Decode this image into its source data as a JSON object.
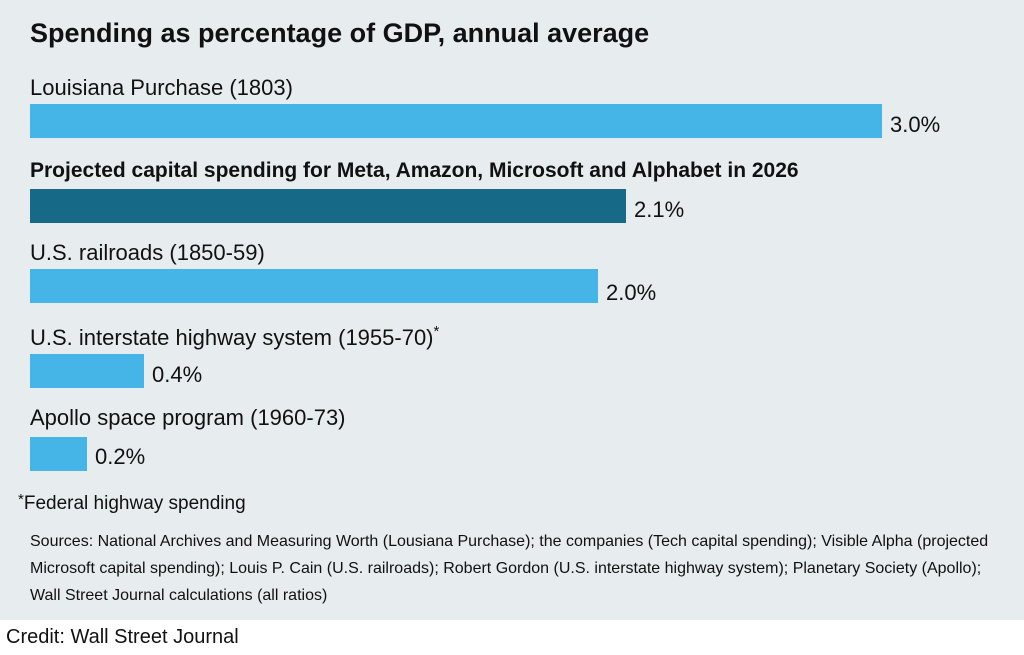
{
  "chart_data": {
    "type": "bar",
    "orientation": "horizontal",
    "title": "Spending as percentage of GDP, annual average",
    "xlabel": "",
    "ylabel": "",
    "unit": "%",
    "xlim": [
      0,
      3.0
    ],
    "grid": false,
    "categories": [
      "Louisiana Purchase (1803)",
      "Projected capital spending for Meta, Amazon, Microsoft and Alphabet in 2026",
      "U.S. railroads (1850-59)",
      "U.S. interstate highway system (1955-70)",
      "Apollo space program (1960-73)"
    ],
    "values": [
      3.0,
      2.1,
      2.0,
      0.4,
      0.2
    ],
    "value_labels": [
      "3.0%",
      "2.1%",
      "2.0%",
      "0.4%",
      "0.2%"
    ],
    "highlight_index": 1,
    "footnote_marker_index": 3,
    "colors": {
      "default": "#45b4e7",
      "highlight": "#176a87"
    }
  },
  "footnote": {
    "marker": "*",
    "text": "Federal highway spending"
  },
  "sources": "Sources: National Archives and Measuring Worth (Lousiana Purchase); the companies (Tech capital spending); Visible Alpha (projected Microsoft capital spending); Louis P. Cain (U.S. railroads); Robert Gordon (U.S. interstate highway system); Planetary Society (Apollo); Wall Street Journal calculations (all ratios)",
  "credit": "Credit:  Wall Street Journal"
}
